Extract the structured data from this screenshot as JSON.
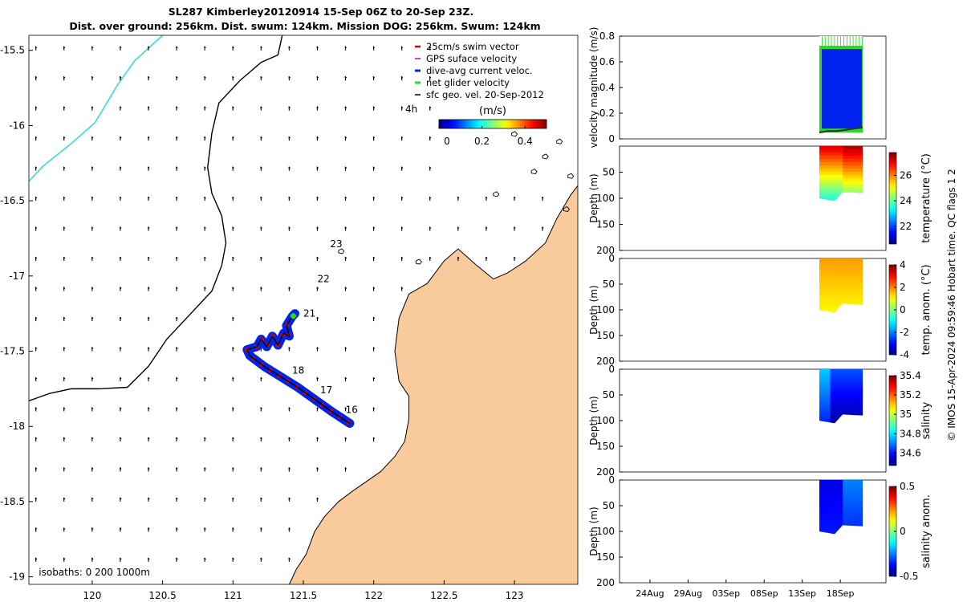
{
  "title_line1": "SL287 Kimberley20120914 15-Sep 06Z to 20-Sep 23Z.",
  "title_line2": "Dist. over ground: 256km. Dist. swum: 124km. Mission DOG: 256km. Swum: 124km",
  "timestamp": "© IMOS 15-Apr-2024 09:59:46 Hobart time. QC flags 1  2",
  "colors": {
    "land": "#f9cb9c",
    "coastline": "#000000",
    "iso200": "#000000",
    "iso1000": "#33dddd",
    "swim_vector": "#dd0000",
    "gps_velocity": "#cc00cc",
    "dive_avg": "#0022ee",
    "net_glider": "#22dd22",
    "sfc_geo": "#000000"
  },
  "chart_data": [
    {
      "type": "map",
      "xlim": [
        119.55,
        123.45
      ],
      "ylim": [
        -19.05,
        -15.4
      ],
      "xticks": [
        "120",
        "120.5",
        "121",
        "121.5",
        "122",
        "122.5",
        "123"
      ],
      "xtick_values": [
        120,
        120.5,
        121,
        121.5,
        122,
        122.5,
        123
      ],
      "yticks": [
        "-15.5",
        "-16",
        "-16.5",
        "-17",
        "-17.5",
        "-18",
        "-18.5",
        "-19"
      ],
      "ytick_values": [
        -15.5,
        -16,
        -16.5,
        -17,
        -17.5,
        -18,
        -18.5,
        -19
      ],
      "legend": {
        "position": "top-right",
        "entries": [
          "25cm/s swim vector",
          "GPS suface velocity",
          "dive-avg current veloc.",
          "net glider velocity",
          "sfc geo. vel. 20-Sep-2012"
        ],
        "colorbar_title": "(m/s)",
        "colorbar_ticks": [
          "0",
          "0.2",
          "0.4"
        ],
        "colorbar_tick_values": [
          0,
          0.2,
          0.4
        ],
        "colorbar_range": [
          0,
          0.5
        ],
        "interval_label": "4h"
      },
      "isobath_label": "isobaths: 0   200  1000m",
      "day_labels": [
        {
          "text": "23",
          "lon": 121.69,
          "lat": -16.81
        },
        {
          "text": "22",
          "lon": 121.6,
          "lat": -17.04
        },
        {
          "text": "21",
          "lon": 121.5,
          "lat": -17.27
        },
        {
          "text": "18",
          "lon": 121.42,
          "lat": -17.65
        },
        {
          "text": "17",
          "lon": 121.62,
          "lat": -17.78
        },
        {
          "text": "16",
          "lon": 121.8,
          "lat": -17.91
        }
      ],
      "glider_track": [
        [
          121.83,
          -17.98
        ],
        [
          121.7,
          -17.9
        ],
        [
          121.58,
          -17.82
        ],
        [
          121.46,
          -17.74
        ],
        [
          121.34,
          -17.67
        ],
        [
          121.22,
          -17.6
        ],
        [
          121.12,
          -17.53
        ],
        [
          121.1,
          -17.49
        ],
        [
          121.17,
          -17.47
        ],
        [
          121.2,
          -17.42
        ],
        [
          121.24,
          -17.47
        ],
        [
          121.28,
          -17.4
        ],
        [
          121.32,
          -17.46
        ],
        [
          121.36,
          -17.38
        ],
        [
          121.4,
          -17.4
        ],
        [
          121.38,
          -17.33
        ],
        [
          121.42,
          -17.27
        ],
        [
          121.44,
          -17.25
        ]
      ],
      "coastline": [
        [
          123.45,
          -16.4
        ],
        [
          123.4,
          -16.46
        ],
        [
          123.3,
          -16.62
        ],
        [
          123.22,
          -16.78
        ],
        [
          123.08,
          -16.9
        ],
        [
          122.95,
          -16.98
        ],
        [
          122.85,
          -17.02
        ],
        [
          122.72,
          -16.92
        ],
        [
          122.6,
          -16.82
        ],
        [
          122.5,
          -16.9
        ],
        [
          122.38,
          -17.05
        ],
        [
          122.25,
          -17.12
        ],
        [
          122.18,
          -17.28
        ],
        [
          122.15,
          -17.5
        ],
        [
          122.18,
          -17.7
        ],
        [
          122.25,
          -17.8
        ],
        [
          122.25,
          -17.95
        ],
        [
          122.22,
          -18.1
        ],
        [
          122.15,
          -18.2
        ],
        [
          122.05,
          -18.3
        ],
        [
          121.85,
          -18.43
        ],
        [
          121.75,
          -18.5
        ],
        [
          121.65,
          -18.6
        ],
        [
          121.58,
          -18.7
        ],
        [
          121.52,
          -18.85
        ],
        [
          121.45,
          -18.95
        ],
        [
          121.4,
          -19.05
        ]
      ],
      "isobath_200m": [
        [
          119.55,
          -17.83
        ],
        [
          119.7,
          -17.78
        ],
        [
          119.85,
          -17.75
        ],
        [
          120.05,
          -17.75
        ],
        [
          120.25,
          -17.74
        ],
        [
          120.4,
          -17.6
        ],
        [
          120.53,
          -17.42
        ],
        [
          120.62,
          -17.33
        ],
        [
          120.72,
          -17.23
        ],
        [
          120.85,
          -17.1
        ],
        [
          120.92,
          -16.93
        ],
        [
          120.95,
          -16.78
        ],
        [
          120.92,
          -16.6
        ],
        [
          120.85,
          -16.45
        ],
        [
          120.82,
          -16.28
        ],
        [
          120.85,
          -16.05
        ],
        [
          120.9,
          -15.85
        ],
        [
          121.05,
          -15.7
        ],
        [
          121.2,
          -15.58
        ],
        [
          121.32,
          -15.53
        ],
        [
          121.35,
          -15.4
        ]
      ],
      "isobath_1000m": [
        [
          119.55,
          -16.37
        ],
        [
          119.65,
          -16.27
        ],
        [
          119.85,
          -16.12
        ],
        [
          120.02,
          -15.98
        ],
        [
          120.18,
          -15.73
        ],
        [
          120.3,
          -15.57
        ],
        [
          120.5,
          -15.4
        ]
      ],
      "sfc_geo_arrows": {
        "u_lon": -0.002,
        "v_lat": 0.025
      }
    },
    {
      "type": "line",
      "ylabel": "velocity magnitude (m/s)",
      "ylim": [
        0,
        0.8
      ],
      "yticks": [
        "0",
        "0.2",
        "0.4",
        "0.6",
        "0.8"
      ],
      "ytick_values": [
        0,
        0.2,
        0.4,
        0.6,
        0.8
      ],
      "xlim": [
        "20-Aug-2012",
        "24-Sep-2012"
      ],
      "x_start": "15-Sep-2012 06Z",
      "x_end": "20-Sep-2012 23Z",
      "series": [
        {
          "band": [
            0.05,
            0.8
          ]
        },
        {
          "band": [
            0.08,
            0.7
          ]
        },
        {
          "x": [
            "15-Sep",
            "16-Sep",
            "17-Sep",
            "18-Sep",
            "19-Sep",
            "20-Sep"
          ],
          "values": [
            0.05,
            0.06,
            0.06,
            0.07,
            0.08,
            0.09
          ]
        }
      ]
    },
    {
      "type": "heatmap",
      "ylabel": "Depth (m)",
      "colorbar_label": "temperature (°C)",
      "colorbar_ticks": [
        "22",
        "24",
        "26"
      ],
      "colorbar_tick_values": [
        22,
        24,
        26
      ],
      "colorbar_range": [
        20.6,
        27.8
      ],
      "ylim": [
        0,
        200
      ],
      "yticks": [
        "50",
        "100",
        "150",
        "200"
      ],
      "ytick_values": [
        50,
        100,
        150,
        200
      ]
    },
    {
      "type": "heatmap",
      "ylabel": "Depth (m)",
      "colorbar_label": "temp. anom. (°C)",
      "colorbar_ticks": [
        "4",
        "2",
        "0",
        "-2",
        "-4"
      ],
      "colorbar_tick_values": [
        4,
        2,
        0,
        -2,
        -4
      ],
      "colorbar_range": [
        -4,
        4
      ],
      "ylim": [
        0,
        200
      ],
      "yticks": [
        "0",
        "50",
        "100",
        "150",
        "200"
      ],
      "ytick_values": [
        0,
        50,
        100,
        150,
        200
      ]
    },
    {
      "type": "heatmap",
      "ylabel": "Depth (m)",
      "colorbar_label": "salinity",
      "colorbar_ticks": [
        "35.4",
        "35.2",
        "35",
        "34.8",
        "34.6"
      ],
      "colorbar_tick_values": [
        35.4,
        35.2,
        35,
        34.8,
        34.6
      ],
      "colorbar_range": [
        34.47,
        35.4
      ],
      "ylim": [
        0,
        200
      ],
      "yticks": [
        "0",
        "50",
        "100",
        "150",
        "200"
      ],
      "ytick_values": [
        0,
        50,
        100,
        150,
        200
      ]
    },
    {
      "type": "heatmap",
      "ylabel": "Depth (m)",
      "colorbar_label": "salinity anom.",
      "colorbar_ticks": [
        "0.5",
        "0",
        "-0.5"
      ],
      "colorbar_tick_values": [
        0.5,
        0,
        -0.5
      ],
      "colorbar_range": [
        -0.5,
        0.5
      ],
      "ylim": [
        0,
        200
      ],
      "yticks": [
        "0",
        "50",
        "100",
        "150",
        "200"
      ],
      "ytick_values": [
        0,
        50,
        100,
        150,
        200
      ],
      "xticks": [
        "24Aug",
        "29Aug",
        "03Sep",
        "08Sep",
        "13Sep",
        "18Sep"
      ]
    }
  ]
}
